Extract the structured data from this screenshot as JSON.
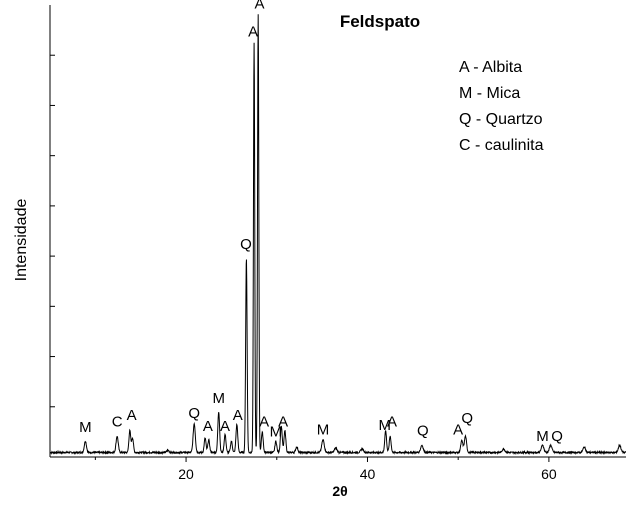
{
  "chart_data": {
    "type": "line",
    "title": "Feldspato",
    "xlabel": "2θ",
    "ylabel": "Intensidade",
    "xlim": [
      5,
      68.5
    ],
    "ylim": [
      0,
      100
    ],
    "x_ticks": [
      20,
      40,
      60
    ],
    "y_tick_count": 8,
    "grid": false,
    "legend_position": "top-right",
    "legend": [
      "A - Albita",
      "M - Mica",
      "Q - Quartzo",
      "C - caulinita"
    ],
    "series": [
      {
        "color": "#000000",
        "baseline": 1.0,
        "peaks": [
          {
            "x": 8.9,
            "y": 3.5,
            "w": 0.12
          },
          {
            "x": 12.4,
            "y": 4.6,
            "w": 0.12
          },
          {
            "x": 13.8,
            "y": 5.8,
            "w": 0.1
          },
          {
            "x": 14.1,
            "y": 4.2,
            "w": 0.1
          },
          {
            "x": 18.0,
            "y": 1.5,
            "w": 0.12
          },
          {
            "x": 20.9,
            "y": 7.4,
            "w": 0.12
          },
          {
            "x": 22.1,
            "y": 4.2,
            "w": 0.1
          },
          {
            "x": 22.5,
            "y": 3.8,
            "w": 0.1
          },
          {
            "x": 23.6,
            "y": 10.0,
            "w": 0.1
          },
          {
            "x": 24.3,
            "y": 5.0,
            "w": 0.1
          },
          {
            "x": 25.0,
            "y": 3.5,
            "w": 0.1
          },
          {
            "x": 25.6,
            "y": 7.2,
            "w": 0.1
          },
          {
            "x": 26.65,
            "y": 44.0,
            "w": 0.08
          },
          {
            "x": 27.5,
            "y": 91.5,
            "w": 0.07
          },
          {
            "x": 27.95,
            "y": 98.0,
            "w": 0.07
          },
          {
            "x": 28.4,
            "y": 5.5,
            "w": 0.1
          },
          {
            "x": 29.9,
            "y": 3.5,
            "w": 0.1
          },
          {
            "x": 30.5,
            "y": 6.8,
            "w": 0.1
          },
          {
            "x": 30.9,
            "y": 5.8,
            "w": 0.1
          },
          {
            "x": 32.2,
            "y": 2.2,
            "w": 0.12
          },
          {
            "x": 35.1,
            "y": 3.8,
            "w": 0.14
          },
          {
            "x": 36.5,
            "y": 2.0,
            "w": 0.14
          },
          {
            "x": 39.4,
            "y": 1.8,
            "w": 0.14
          },
          {
            "x": 42.0,
            "y": 5.8,
            "w": 0.1
          },
          {
            "x": 42.5,
            "y": 4.6,
            "w": 0.1
          },
          {
            "x": 46.0,
            "y": 2.6,
            "w": 0.14
          },
          {
            "x": 50.4,
            "y": 3.6,
            "w": 0.12
          },
          {
            "x": 50.8,
            "y": 4.6,
            "w": 0.12
          },
          {
            "x": 55.0,
            "y": 1.8,
            "w": 0.14
          },
          {
            "x": 59.3,
            "y": 2.6,
            "w": 0.14
          },
          {
            "x": 60.2,
            "y": 2.6,
            "w": 0.14
          },
          {
            "x": 63.9,
            "y": 2.2,
            "w": 0.14
          },
          {
            "x": 67.8,
            "y": 2.6,
            "w": 0.14
          }
        ]
      }
    ],
    "annotations": [
      {
        "text": "M",
        "x": 8.9,
        "y": 5.5
      },
      {
        "text": "C",
        "x": 12.4,
        "y": 6.8
      },
      {
        "text": "A",
        "x": 14.0,
        "y": 8.2
      },
      {
        "text": "Q",
        "x": 20.9,
        "y": 8.6
      },
      {
        "text": "A",
        "x": 22.4,
        "y": 5.7
      },
      {
        "text": "M",
        "x": 23.6,
        "y": 12.0
      },
      {
        "text": "A",
        "x": 24.3,
        "y": 5.7
      },
      {
        "text": "A",
        "x": 25.7,
        "y": 8.2
      },
      {
        "text": "Q",
        "x": 26.6,
        "y": 46.0
      },
      {
        "text": "A",
        "x": 27.4,
        "y": 93.0
      },
      {
        "text": "A",
        "x": 28.1,
        "y": 99.2
      },
      {
        "text": "A",
        "x": 28.6,
        "y": 6.8
      },
      {
        "text": "M",
        "x": 29.9,
        "y": 4.5
      },
      {
        "text": "A",
        "x": 30.7,
        "y": 6.8
      },
      {
        "text": "M",
        "x": 35.1,
        "y": 5.0
      },
      {
        "text": "M",
        "x": 41.9,
        "y": 6.0
      },
      {
        "text": "A",
        "x": 42.7,
        "y": 6.8
      },
      {
        "text": "Q",
        "x": 46.1,
        "y": 4.8
      },
      {
        "text": "A",
        "x": 50.0,
        "y": 5.0
      },
      {
        "text": "Q",
        "x": 51.0,
        "y": 7.5
      },
      {
        "text": "M",
        "x": 59.3,
        "y": 3.5
      },
      {
        "text": "Q",
        "x": 60.9,
        "y": 3.5
      }
    ]
  }
}
